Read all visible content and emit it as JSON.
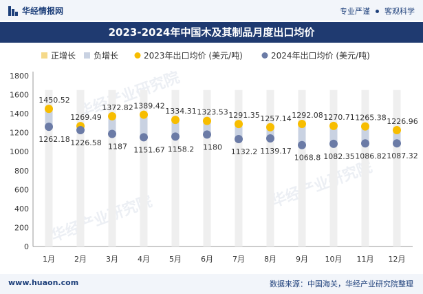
{
  "header": {
    "brand": "华经情报网",
    "tagline_left": "专业严谨",
    "tagline_right": "客观科学"
  },
  "title": "2023-2024年中国木及其制品月度出口均价",
  "legend": {
    "items": [
      {
        "label": "正增长",
        "color": "#f5d98a"
      },
      {
        "label": "负增长",
        "color": "#c9d2e2"
      },
      {
        "label": "2023年出口均价 (美元/吨)",
        "color": "#f7bd00"
      },
      {
        "label": "2024年出口均价 (美元/吨)",
        "color": "#6b7ba6"
      }
    ]
  },
  "footer": {
    "website": "www.huaon.com",
    "source": "数据来源：中国海关，华经产业研究院整理"
  },
  "watermark": "华经产业研究院",
  "chart_data": {
    "type": "line",
    "categories": [
      "1月",
      "2月",
      "3月",
      "4月",
      "5月",
      "6月",
      "7月",
      "8月",
      "9月",
      "10月",
      "11月",
      "12月"
    ],
    "series": [
      {
        "name": "2023年出口均价 (美元/吨)",
        "values": [
          1450.52,
          1269.49,
          1372.82,
          1389.42,
          1334.31,
          1323.53,
          1291.35,
          1257.14,
          1292.08,
          1270.71,
          1265.38,
          1226.96
        ],
        "color": "#f7bd00"
      },
      {
        "name": "2024年出口均价 (美元/吨)",
        "values": [
          1262.18,
          1226.58,
          1187,
          1151.67,
          1158.2,
          1180,
          1132.2,
          1139.17,
          1068.8,
          1082.35,
          1086.82,
          1087.32
        ],
        "color": "#6b7ba6"
      }
    ],
    "ylim": [
      0,
      1800
    ],
    "yticks": [
      0,
      200,
      400,
      600,
      800,
      1000,
      1200,
      1400,
      1600,
      1800
    ],
    "grid": false,
    "colors": {
      "positive": "#f5d98a",
      "negative": "#c9d2e2",
      "bar_bg": "#efefef",
      "axis": "#999999"
    }
  }
}
